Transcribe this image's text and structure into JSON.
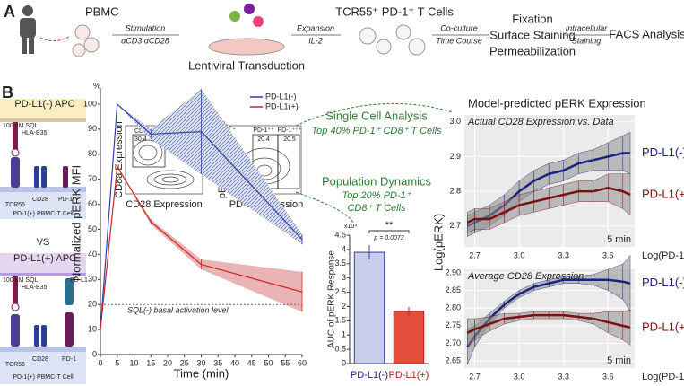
{
  "panel_a": {
    "label": "A",
    "source": "PBMC",
    "stimulation": [
      "Stimulation",
      "αCD3 αCD28"
    ],
    "transduction": "Lentiviral Transduction",
    "expansion": [
      "Expansion",
      "IL-2"
    ],
    "cells": "TCR55⁺ PD-1⁺ T Cells",
    "coculture": [
      "Co-culture",
      "Time Course"
    ],
    "processing": [
      "Fixation",
      "Surface Staining",
      "Permeabilization"
    ],
    "staining": [
      "Intracellular",
      "Staining"
    ],
    "readout": "FACS Analysis"
  },
  "panel_b": {
    "label": "B",
    "top_cell": {
      "apc": "PD-L1(-) APC",
      "peptide": "100 µM SQL",
      "hla": "HLA-B35",
      "tcr": "TCR55",
      "cd28": "CD28",
      "pd1": "PD-1",
      "tcell": "PD-1(+) PBMC-T Cell"
    },
    "versus": "VS",
    "bottom_cell": {
      "apc": "PD-L1(+) APC",
      "peptide": "100 µM SQL",
      "hla": "HLA-B35",
      "pdl1": "PD-L1",
      "tcr": "TCR55",
      "cd28": "CD28",
      "pd1": "PD-1",
      "tcell": "PD-1(+) PBMC-T Cell"
    }
  },
  "flow_cytometry": {
    "plot1": {
      "gate_label": "CD8⁺",
      "gate_value": 30.4,
      "y_label": "CD8a Expression",
      "x_label": "CD28 Expression"
    },
    "plot2": {
      "gate1_label": "PD-1⁺⁺",
      "gate1_value": 20.4,
      "gate2_label": "PD-1⁺⁺⁺",
      "gate2_value": 20.5,
      "y_label": "pERK Expression",
      "x_label": "PD-1 Expression"
    }
  },
  "annotations": {
    "single_cell": "Single Cell Analysis",
    "single_cell_note": "Top 40% PD-1⁺ CD8⁺ T Cells",
    "population": "Population Dynamics",
    "population_note": [
      "Top 20% PD-1⁺",
      "CD8⁺ T Cells"
    ]
  },
  "chart_data": [
    {
      "type": "line",
      "y_label": "Normalized pERK MFI",
      "y_unit": "%",
      "x_label": "Time (min)",
      "x": [
        0,
        5,
        15,
        30,
        60
      ],
      "xlim": [
        0,
        60
      ],
      "xticks": [
        0,
        5,
        10,
        15,
        20,
        25,
        30,
        35,
        40,
        45,
        50,
        55,
        60
      ],
      "ylim": [
        0,
        105
      ],
      "yticks": [
        0,
        10,
        20,
        30,
        40,
        50,
        60,
        70,
        80,
        90,
        100
      ],
      "legend": "upper right",
      "grid": false,
      "annotation": "SQL(-) basal activation level",
      "basal_level": 20,
      "series": [
        {
          "name": "PD-L1(-)",
          "color": "#2f3fa8",
          "values": [
            10,
            100,
            88,
            89,
            46
          ],
          "errors": [
            0,
            0,
            2,
            17,
            2
          ],
          "hatch": true
        },
        {
          "name": "PD-L1(+)",
          "color": "#c62828",
          "values": [
            10,
            75,
            53,
            36,
            25
          ],
          "errors": [
            0,
            0,
            1,
            2,
            8
          ],
          "hatch": false
        }
      ]
    },
    {
      "type": "bar",
      "y_label": "AUC of pERK Response",
      "y_multiplier": "x10⁴",
      "categories": [
        "PD-L1(-)",
        "PD-L1(+)"
      ],
      "values": [
        3.9,
        1.83
      ],
      "errors": [
        0.25,
        0.15
      ],
      "colors": [
        "#c9cdea",
        "#e2503c"
      ],
      "edge_colors": [
        "#2f3fa8",
        "#b71c1c"
      ],
      "label_colors": [
        "#1a237e",
        "#b71c1c"
      ],
      "ylim": [
        0,
        4.5
      ],
      "yticks": [
        0,
        0.5,
        1,
        1.5,
        2,
        2.5,
        3,
        3.5,
        4,
        4.5
      ],
      "significance": "**",
      "p_value": "p = 0.0073"
    },
    {
      "type": "line",
      "title": "Model-predicted pERK Expression",
      "subtitle": "Actual CD28 Expression vs. Data",
      "annotation": "5 min",
      "x_label": "Log(PD-1)",
      "y_label": "Log(pERK)",
      "grid": true,
      "legend": "right",
      "band_color": "#8f8f8f",
      "x": [
        2.65,
        2.7,
        2.8,
        2.9,
        3.0,
        3.1,
        3.2,
        3.3,
        3.4,
        3.5,
        3.6,
        3.7,
        3.75
      ],
      "xlim": [
        2.63,
        3.78
      ],
      "xticks": [
        2.7,
        {
          "value": 3,
          "label": "3.0"
        },
        3.3,
        3.6
      ],
      "ylim": [
        2.64,
        3.02
      ],
      "yticks": [
        2.7,
        2.8,
        2.9,
        {
          "value": 3,
          "label": "3.0"
        }
      ],
      "series": [
        {
          "name": "PD-L1(-)",
          "color": "#1a237e",
          "values": [
            2.7,
            2.71,
            2.73,
            2.76,
            2.8,
            2.83,
            2.85,
            2.86,
            2.88,
            2.89,
            2.9,
            2.91,
            2.91
          ],
          "errors": [
            0.03,
            0.03,
            0.03,
            0.03,
            0.03,
            0.03,
            0.03,
            0.03,
            0.03,
            0.03,
            0.04,
            0.05,
            0.06
          ]
        },
        {
          "name": "PD-L1(+)",
          "color": "#7b1010",
          "values": [
            2.71,
            2.72,
            2.72,
            2.74,
            2.76,
            2.77,
            2.78,
            2.79,
            2.8,
            2.8,
            2.81,
            2.8,
            2.79
          ],
          "errors": [
            0.03,
            0.03,
            0.03,
            0.03,
            0.03,
            0.03,
            0.03,
            0.03,
            0.03,
            0.03,
            0.04,
            0.05,
            0.06
          ]
        }
      ]
    },
    {
      "type": "line",
      "subtitle": "Average CD28 Expression",
      "annotation": "5 min",
      "x_label": "Log(PD-1)",
      "grid": true,
      "legend": "right",
      "band_color": "#8f8f8f",
      "x": [
        2.65,
        2.7,
        2.8,
        2.9,
        3.0,
        3.1,
        3.2,
        3.3,
        3.4,
        3.5,
        3.6,
        3.7,
        3.75
      ],
      "xlim": [
        2.63,
        3.78
      ],
      "xticks": [
        2.7,
        {
          "value": 3,
          "label": "3.0"
        },
        3.3,
        3.6
      ],
      "ylim": [
        2.63,
        2.91
      ],
      "yticks": [
        2.65,
        {
          "value": 2.7,
          "label": "2.70"
        },
        2.75,
        {
          "value": 2.8,
          "label": "2.80"
        },
        2.85,
        {
          "value": 2.9,
          "label": "2.90"
        }
      ],
      "series": [
        {
          "name": "PD-L1(-)",
          "color": "#1a237e",
          "values": [
            2.69,
            2.72,
            2.77,
            2.81,
            2.84,
            2.86,
            2.87,
            2.88,
            2.88,
            2.88,
            2.88,
            2.875,
            2.87
          ],
          "errors": [
            0.05,
            0.03,
            0.015,
            0.01,
            0.01,
            0.01,
            0.01,
            0.01,
            0.01,
            0.015,
            0.03,
            0.05,
            0.08
          ]
        },
        {
          "name": "PD-L1(+)",
          "color": "#7b1010",
          "values": [
            2.73,
            2.74,
            2.755,
            2.77,
            2.775,
            2.78,
            2.78,
            2.78,
            2.775,
            2.77,
            2.76,
            2.75,
            2.745
          ],
          "errors": [
            0.04,
            0.03,
            0.02,
            0.015,
            0.01,
            0.01,
            0.01,
            0.01,
            0.01,
            0.015,
            0.03,
            0.04,
            0.05
          ]
        }
      ]
    }
  ]
}
